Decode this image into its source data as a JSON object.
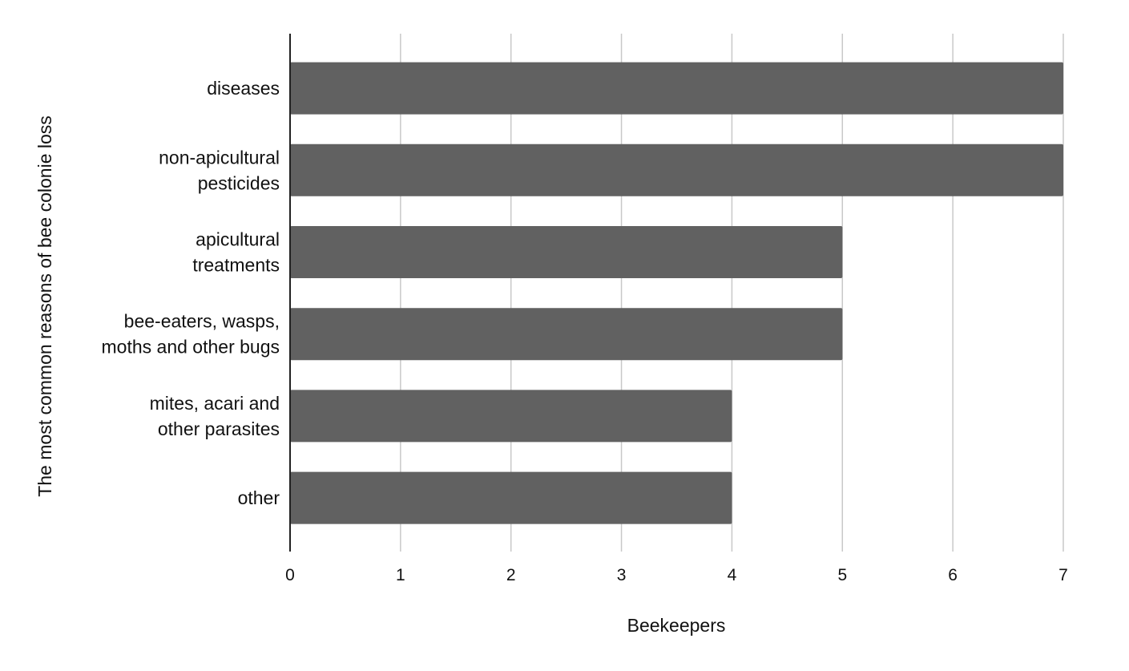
{
  "chart_data": {
    "type": "bar",
    "orientation": "horizontal",
    "categories": [
      [
        "diseases"
      ],
      [
        "non-apicultural",
        "pesticides"
      ],
      [
        "apicultural",
        "treatments"
      ],
      [
        "bee-eaters, wasps,",
        "moths and other bugs"
      ],
      [
        "mites, acari and",
        "other parasites"
      ],
      [
        "other"
      ]
    ],
    "values": [
      7,
      7,
      5,
      5,
      4,
      4
    ],
    "xlabel": "Beekeepers",
    "ylabel": "The most common reasons of bee colonie loss",
    "xlim": [
      0,
      7
    ],
    "xticks": [
      "0",
      "1",
      "2",
      "3",
      "4",
      "5",
      "6",
      "7"
    ],
    "grid": "vertical",
    "bar_color": "#616161",
    "gridline_color": "#c8c8c8",
    "axis_color": "#222222"
  }
}
